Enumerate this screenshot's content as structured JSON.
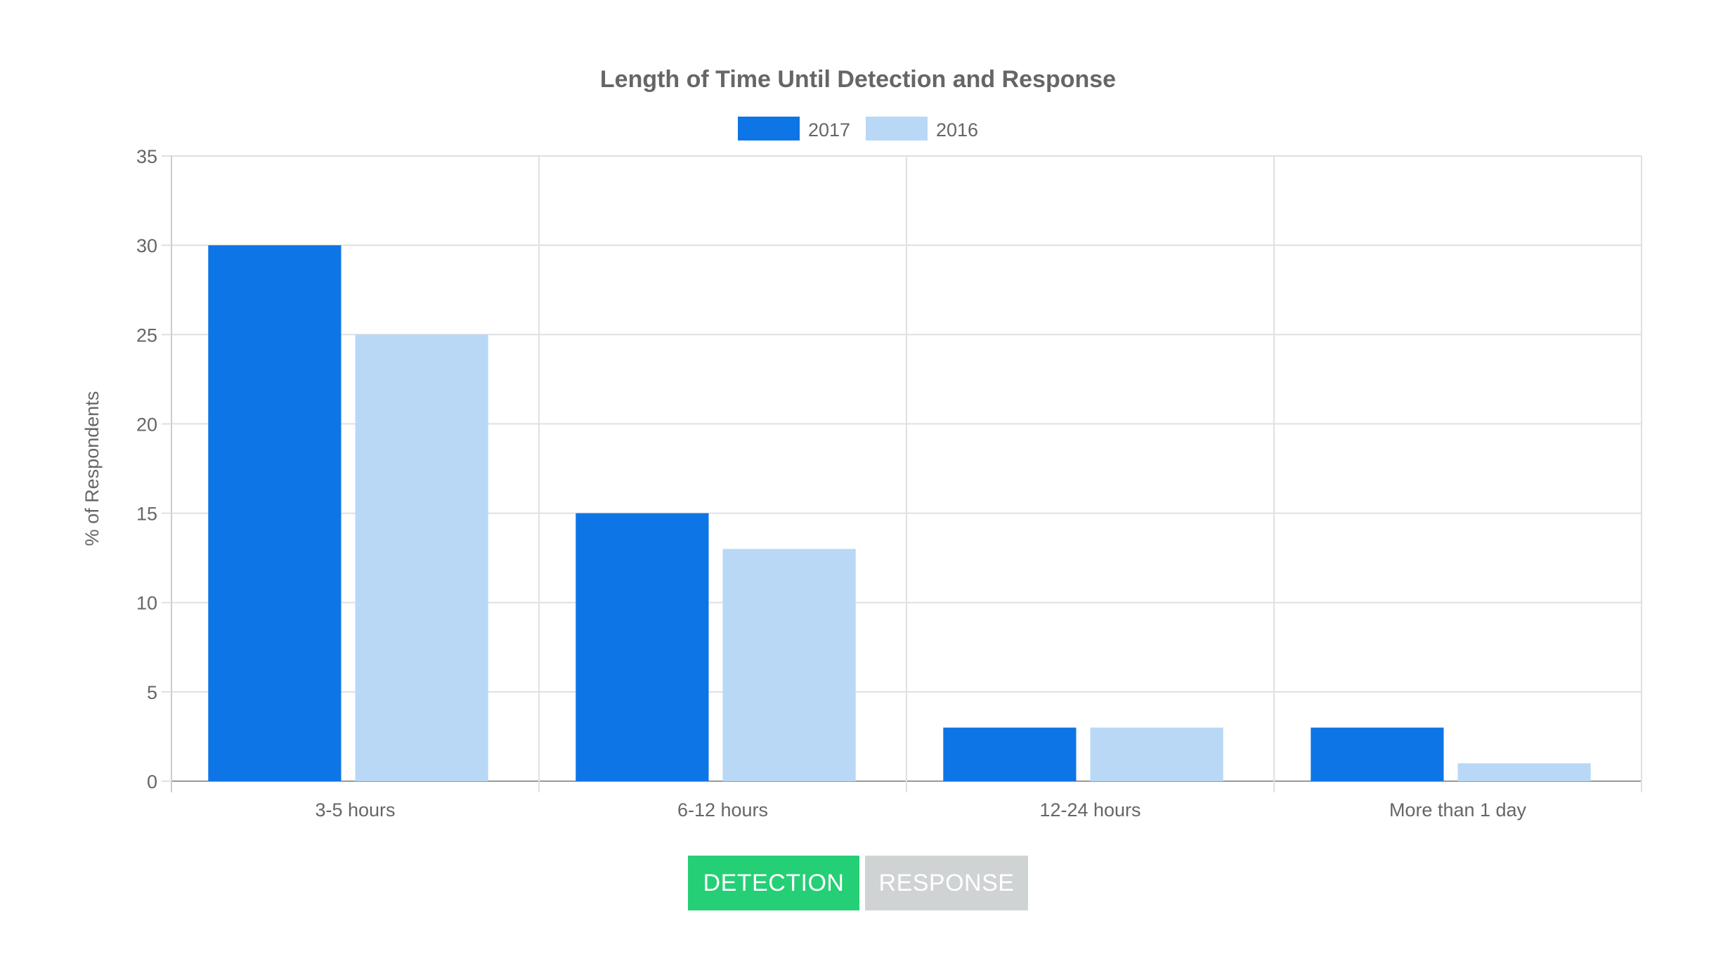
{
  "chart_data": {
    "type": "bar",
    "title": "Length of Time Until Detection and Response",
    "xlabel": "",
    "ylabel": "% of Respondents",
    "categories": [
      "3-5 hours",
      "6-12 hours",
      "12-24 hours",
      "More than 1 day"
    ],
    "series": [
      {
        "name": "2017",
        "values": [
          30,
          15,
          3,
          3
        ],
        "color": "#0e75e6"
      },
      {
        "name": "2016",
        "values": [
          25,
          13,
          3,
          1
        ],
        "color": "#b8d8f6"
      }
    ],
    "ylim": [
      0,
      35
    ],
    "yticks": [
      0,
      5,
      10,
      15,
      20,
      25,
      30,
      35
    ],
    "grid": true,
    "legend_position": "top-center"
  },
  "toggle": {
    "detection_label": "DETECTION",
    "response_label": "RESPONSE",
    "selected": "DETECTION",
    "active_color": "#25cf76",
    "inactive_color": "#d0d3d4"
  }
}
